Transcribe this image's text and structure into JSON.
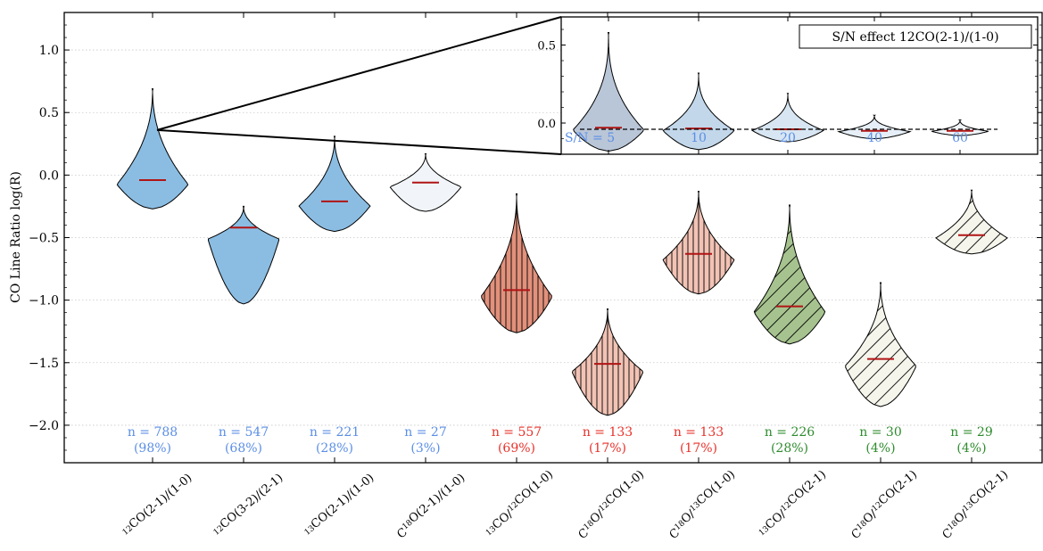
{
  "chart_data": {
    "type": "violin",
    "ylabel": "CO Line Ratio log(R)",
    "ylim": [
      -2.3,
      1.3
    ],
    "yticks": [
      -2.0,
      -1.5,
      -1.0,
      -0.5,
      0.0,
      0.5,
      1.0
    ],
    "ytick_labels": [
      "−2.0",
      "−1.5",
      "−1.0",
      "−0.5",
      "0.0",
      "0.5",
      "1.0"
    ],
    "grid": "horizontal dotted",
    "violins": [
      {
        "label": "12CO(2-1)/(1-0)",
        "min": -0.27,
        "max": 0.69,
        "median": -0.04,
        "n_label": "n = 788",
        "pct_label": "(98%)",
        "color": "#5b8ee6",
        "fill": "#8bbde3",
        "hatch": "none"
      },
      {
        "label": "12CO(3-2)/(2-1)",
        "min": -1.03,
        "max": -0.25,
        "median": -0.42,
        "n_label": "n = 547",
        "pct_label": "(68%)",
        "color": "#5b8ee6",
        "fill": "#8bbde3",
        "hatch": "none"
      },
      {
        "label": "13CO(2-1)/(1-0)",
        "min": -0.45,
        "max": 0.31,
        "median": -0.21,
        "n_label": "n = 221",
        "pct_label": "(28%)",
        "color": "#5b8ee6",
        "fill": "#8bbde3",
        "hatch": "none"
      },
      {
        "label": "C18O(2-1)/(1-0)",
        "min": -0.29,
        "max": 0.17,
        "median": -0.06,
        "n_label": "n = 27",
        "pct_label": "(3%)",
        "color": "#5b8ee6",
        "fill": "#f1f5f9",
        "hatch": "none"
      },
      {
        "label": "13CO/12CO(1-0)",
        "min": -1.26,
        "max": -0.15,
        "median": -0.92,
        "n_label": "n = 557",
        "pct_label": "(69%)",
        "color": "#e8312a",
        "fill": "#e2917c",
        "hatch": "vertical"
      },
      {
        "label": "C18O/12CO(1-0)",
        "min": -1.92,
        "max": -1.07,
        "median": -1.51,
        "n_label": "n = 133",
        "pct_label": "(17%)",
        "color": "#e8312a",
        "fill": "#f2c3b5",
        "hatch": "vertical"
      },
      {
        "label": "C18O/13CO(1-0)",
        "min": -0.95,
        "max": -0.13,
        "median": -0.63,
        "n_label": "n = 133",
        "pct_label": "(17%)",
        "color": "#e8312a",
        "fill": "#f2c3b5",
        "hatch": "vertical"
      },
      {
        "label": "13CO/12CO(2-1)",
        "min": -1.35,
        "max": -0.24,
        "median": -1.05,
        "n_label": "n = 226",
        "pct_label": "(28%)",
        "color": "#2e8b2e",
        "fill": "#a6c38f",
        "hatch": "diagonal"
      },
      {
        "label": "C18O/12CO(2-1)",
        "min": -1.85,
        "max": -0.86,
        "median": -1.47,
        "n_label": "n = 30",
        "pct_label": "(4%)",
        "color": "#2e8b2e",
        "fill": "#f5f5ec",
        "hatch": "diagonal"
      },
      {
        "label": "C18O/13CO(2-1)",
        "min": -0.63,
        "max": -0.12,
        "median": -0.48,
        "n_label": "n = 29",
        "pct_label": "(4%)",
        "color": "#2e8b2e",
        "fill": "#f5f5ec",
        "hatch": "diagonal"
      }
    ],
    "inset": {
      "title": "S/N effect 12CO(2-1)/(1-0)",
      "ylim": [
        -0.2,
        0.68
      ],
      "yticks": [
        0.0,
        0.5
      ],
      "ytick_labels": [
        "0.0",
        "0.5"
      ],
      "reference_line": -0.04,
      "violins": [
        {
          "label": "S/N = 5",
          "min": -0.18,
          "max": 0.58,
          "median": -0.03,
          "fill": "#b9c6d8"
        },
        {
          "label": "10",
          "min": -0.17,
          "max": 0.32,
          "median": -0.035,
          "fill": "#c2d7ea"
        },
        {
          "label": "20",
          "min": -0.12,
          "max": 0.19,
          "median": -0.04,
          "fill": "#d7e6f2"
        },
        {
          "label": "40",
          "min": -0.1,
          "max": 0.05,
          "median": -0.05,
          "fill": "#e6eff7"
        },
        {
          "label": "60",
          "min": -0.08,
          "max": 0.02,
          "median": -0.05,
          "fill": "#f1f5f9"
        }
      ]
    }
  }
}
